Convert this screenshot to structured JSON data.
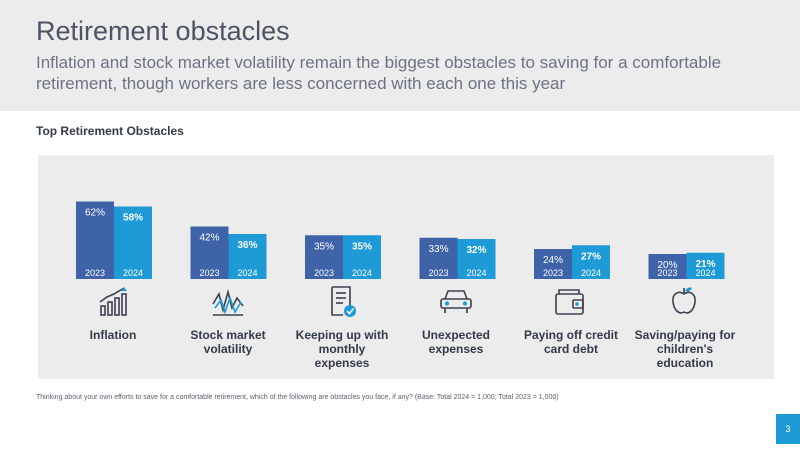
{
  "header": {
    "title": "Retirement obstacles",
    "subtitle": "Inflation and stock market volatility remain the biggest obstacles to saving for a comfortable retirement, though workers are less concerned with each one this year"
  },
  "chart_data": {
    "type": "bar",
    "title": "Top Retirement Obstacles",
    "categories": [
      "Inflation",
      "Stock market volatility",
      "Keeping up with monthly expenses",
      "Unexpected expenses",
      "Paying off credit card debt",
      "Saving/paying for children's education"
    ],
    "series": [
      {
        "name": "2023",
        "values": [
          62,
          42,
          35,
          33,
          24,
          20
        ],
        "labels": [
          "62%",
          "42%",
          "35%",
          "33%",
          "24%",
          "20%"
        ],
        "color": "#3f63a8"
      },
      {
        "name": "2024",
        "values": [
          58,
          36,
          35,
          32,
          27,
          21
        ],
        "labels": [
          "58%",
          "36%",
          "35%",
          "32%",
          "27%",
          "21%"
        ],
        "color": "#1e9ad6"
      }
    ],
    "ylim": [
      0,
      100
    ],
    "legend": "none",
    "grid": false
  },
  "category_labels": [
    [
      "Inflation"
    ],
    [
      "Stock market",
      "volatility"
    ],
    [
      "Keeping up with",
      "monthly",
      "expenses"
    ],
    [
      "Unexpected",
      "expenses"
    ],
    [
      "Paying off credit",
      "card debt"
    ],
    [
      "Saving/paying for",
      "children's",
      "education"
    ]
  ],
  "icons": [
    "bar-chart-growth-icon",
    "stock-volatility-icon",
    "bill-checkmark-icon",
    "car-icon",
    "wallet-icon",
    "apple-icon"
  ],
  "footnote": "Thinking about your own efforts to save for a comfortable retirement, which of the following are obstacles you face, if any? (Base: Total 2024 = 1,000; Total 2023 = 1,000)",
  "page_number": "3",
  "colors": {
    "dark_blue": "#3f63a8",
    "light_blue": "#1e9ad6",
    "text": "#333a48",
    "panel": "#ececec"
  }
}
